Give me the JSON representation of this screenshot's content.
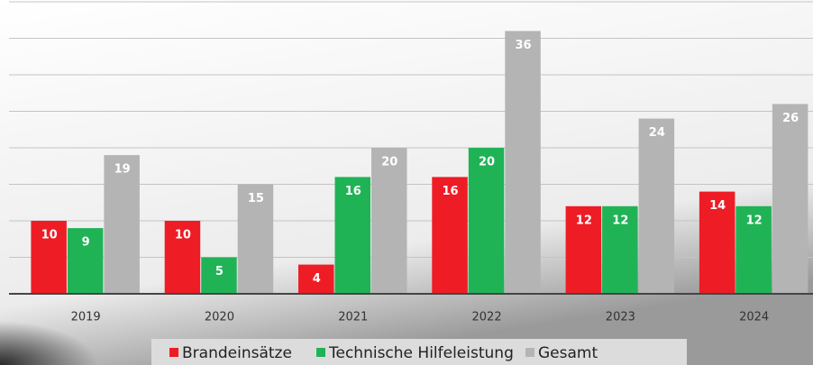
{
  "chart_data": {
    "type": "bar",
    "categories": [
      "2019",
      "2020",
      "2021",
      "2022",
      "2023",
      "2024"
    ],
    "series": [
      {
        "name": "Brandeinsätze",
        "color": "#ee1c25",
        "values": [
          10,
          10,
          4,
          16,
          12,
          14
        ]
      },
      {
        "name": "Technische Hilfeleistung",
        "color": "#1fb356",
        "values": [
          9,
          5,
          16,
          20,
          12,
          12
        ]
      },
      {
        "name": "Gesamt",
        "color": "#b4b4b4",
        "values": [
          19,
          15,
          20,
          36,
          24,
          26
        ]
      }
    ],
    "ylim": [
      0,
      40
    ],
    "yticks": [
      5,
      10,
      15,
      20,
      25,
      30,
      35,
      40
    ],
    "grid": true
  }
}
